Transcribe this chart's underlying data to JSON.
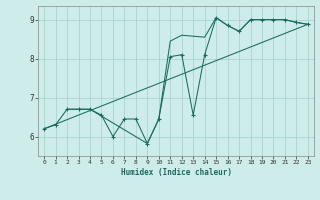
{
  "xlabel": "Humidex (Indice chaleur)",
  "bg_color": "#cdecea",
  "grid_color": "#aad4d0",
  "line_color": "#1a6b5e",
  "xlim": [
    -0.5,
    23.5
  ],
  "ylim": [
    5.5,
    9.35
  ],
  "yticks": [
    6,
    7,
    8,
    9
  ],
  "xticks": [
    0,
    1,
    2,
    3,
    4,
    5,
    6,
    7,
    8,
    9,
    10,
    11,
    12,
    13,
    14,
    15,
    16,
    17,
    18,
    19,
    20,
    21,
    22,
    23
  ],
  "series1_x": [
    0,
    1,
    2,
    3,
    4,
    5,
    6,
    7,
    8,
    9,
    10,
    11,
    12,
    13,
    14,
    15,
    16,
    17,
    18,
    19,
    20,
    21,
    22,
    23
  ],
  "series1_y": [
    6.2,
    6.3,
    6.7,
    6.7,
    6.7,
    6.55,
    6.0,
    6.45,
    6.45,
    5.82,
    6.45,
    8.05,
    8.1,
    6.55,
    8.1,
    9.05,
    8.85,
    8.7,
    9.0,
    9.0,
    9.0,
    9.0,
    8.93,
    8.88
  ],
  "series2_x": [
    0,
    23
  ],
  "series2_y": [
    6.2,
    8.88
  ],
  "series3_x": [
    2,
    3,
    4,
    9,
    10,
    11,
    12,
    14,
    15,
    16,
    17,
    18,
    19,
    20,
    21,
    22,
    23
  ],
  "series3_y": [
    6.7,
    6.7,
    6.7,
    5.82,
    6.45,
    8.45,
    8.6,
    8.55,
    9.05,
    8.85,
    8.7,
    9.0,
    9.0,
    9.0,
    9.0,
    8.93,
    8.88
  ]
}
